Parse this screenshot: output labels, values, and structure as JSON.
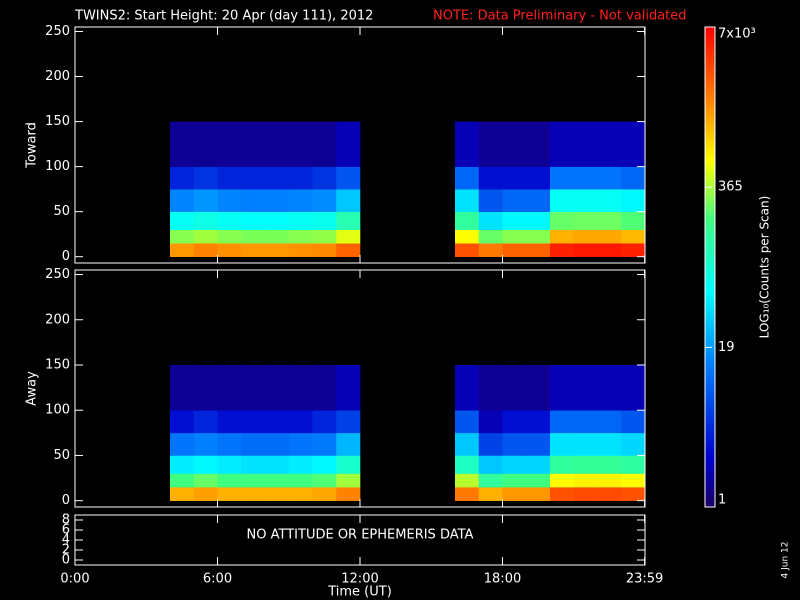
{
  "chart_data": [
    {
      "type": "heatmap",
      "title": "TWINS2: Start Height: 20 Apr (day 111), 2012",
      "note": "NOTE: Data Preliminary - Not validated",
      "ylabel": "Toward",
      "xlim": [
        0,
        24
      ],
      "ylim": [
        -7,
        255
      ],
      "yticks": [
        0,
        50,
        100,
        150,
        200,
        250
      ],
      "x_bins": [
        0,
        1,
        2,
        3,
        4,
        5,
        6,
        7,
        8,
        9,
        10,
        11,
        12,
        13,
        14,
        15,
        16,
        17,
        18,
        19,
        20,
        21,
        22,
        23,
        24
      ],
      "y_bins": [
        0,
        15,
        30,
        50,
        75,
        100,
        150
      ],
      "values": [
        [
          null,
          null,
          null,
          null,
          1500,
          1800,
          1600,
          1500,
          1500,
          1600,
          1700,
          2500,
          null,
          null,
          null,
          null,
          3000,
          2000,
          2500,
          2500,
          5000,
          5500,
          5500,
          5000
        ],
        [
          null,
          null,
          null,
          null,
          300,
          350,
          300,
          280,
          280,
          300,
          320,
          500,
          null,
          null,
          null,
          null,
          600,
          250,
          300,
          300,
          1200,
          1300,
          1300,
          1100
        ],
        [
          null,
          null,
          null,
          null,
          60,
          70,
          60,
          55,
          55,
          60,
          65,
          120,
          null,
          null,
          null,
          null,
          150,
          40,
          50,
          50,
          250,
          260,
          260,
          220
        ],
        [
          null,
          null,
          null,
          null,
          15,
          18,
          15,
          14,
          14,
          15,
          16,
          30,
          null,
          null,
          null,
          null,
          40,
          8,
          10,
          10,
          60,
          60,
          60,
          50
        ],
        [
          null,
          null,
          null,
          null,
          4,
          5,
          4,
          4,
          4,
          4,
          5,
          8,
          null,
          null,
          null,
          null,
          10,
          3,
          3,
          3,
          12,
          12,
          12,
          10
        ],
        [
          null,
          null,
          null,
          null,
          1.5,
          1.5,
          1.5,
          1.5,
          1.5,
          1.5,
          1.5,
          2,
          null,
          null,
          null,
          null,
          2,
          1.5,
          1.5,
          1.5,
          2,
          2,
          2,
          2
        ]
      ],
      "colorbar": {
        "label": "LOG₁₀(Counts per Scan)",
        "log": true,
        "lim": [
          1,
          7000
        ],
        "ticks": [
          1,
          19,
          365,
          {
            "value": 7000,
            "label": "7x10³"
          }
        ]
      }
    },
    {
      "type": "heatmap",
      "ylabel": "Away",
      "xlim": [
        0,
        24
      ],
      "ylim": [
        -7,
        255
      ],
      "yticks": [
        0,
        50,
        100,
        150,
        200,
        250
      ],
      "x_bins": [
        0,
        1,
        2,
        3,
        4,
        5,
        6,
        7,
        8,
        9,
        10,
        11,
        12,
        13,
        14,
        15,
        16,
        17,
        18,
        19,
        20,
        21,
        22,
        23,
        24
      ],
      "y_bins": [
        0,
        15,
        30,
        50,
        75,
        100,
        150
      ],
      "values": [
        [
          null,
          null,
          null,
          null,
          1200,
          1400,
          1200,
          1200,
          1200,
          1200,
          1300,
          1800,
          null,
          null,
          null,
          null,
          2000,
          1200,
          1500,
          1500,
          3000,
          3200,
          3200,
          3000
        ],
        [
          null,
          null,
          null,
          null,
          200,
          250,
          200,
          200,
          200,
          200,
          220,
          350,
          null,
          null,
          null,
          null,
          400,
          150,
          200,
          200,
          600,
          650,
          650,
          600
        ],
        [
          null,
          null,
          null,
          null,
          45,
          50,
          45,
          40,
          40,
          45,
          50,
          90,
          null,
          null,
          null,
          null,
          100,
          30,
          35,
          35,
          150,
          160,
          160,
          140
        ],
        [
          null,
          null,
          null,
          null,
          12,
          14,
          12,
          11,
          11,
          12,
          13,
          25,
          null,
          null,
          null,
          null,
          30,
          6,
          8,
          8,
          40,
          40,
          40,
          35
        ],
        [
          null,
          null,
          null,
          null,
          3,
          4,
          3,
          3,
          3,
          3,
          4,
          6,
          null,
          null,
          null,
          null,
          8,
          2,
          3,
          3,
          10,
          10,
          10,
          8
        ],
        [
          null,
          null,
          null,
          null,
          1.5,
          1.5,
          1.5,
          1.5,
          1.5,
          1.5,
          1.5,
          2,
          null,
          null,
          null,
          null,
          2,
          1.5,
          1.5,
          1.5,
          2,
          2,
          2,
          2
        ]
      ]
    },
    {
      "type": "text",
      "text": "NO ATTITUDE OR EPHEMERIS DATA",
      "xlim": [
        0,
        24
      ],
      "ylim": [
        -1,
        9
      ],
      "yticks": [
        0,
        2,
        4,
        6,
        8
      ],
      "xticks": [
        {
          "value": 0,
          "label": "0:00"
        },
        {
          "value": 6,
          "label": "6:00"
        },
        {
          "value": 12,
          "label": "12:00"
        },
        {
          "value": 18,
          "label": "18:00"
        },
        {
          "value": 23.983,
          "label": "23:59"
        }
      ],
      "xlabel": "Time (UT)"
    }
  ],
  "footer_date": "4 Jun 12"
}
